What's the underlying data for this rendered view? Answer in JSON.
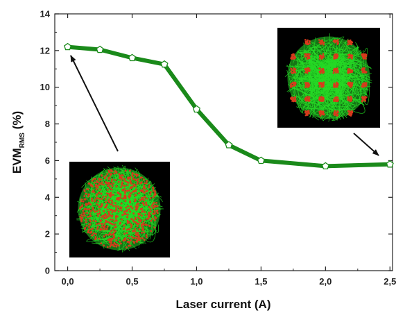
{
  "chart_data": {
    "type": "line",
    "title": "",
    "xlabel": "Laser current (A)",
    "ylabel_main": "EVM",
    "ylabel_sub": "RMS",
    "ylabel_unit": " (%)",
    "xlim": [
      -0.1,
      2.52
    ],
    "ylim": [
      0,
      14
    ],
    "x_ticks": [
      "0,0",
      "0,5",
      "1,0",
      "1,5",
      "2,0",
      "2,5"
    ],
    "x_tick_values": [
      0,
      0.5,
      1.0,
      1.5,
      2.0,
      2.5
    ],
    "y_ticks": [
      "0",
      "2",
      "4",
      "6",
      "8",
      "10",
      "12",
      "14"
    ],
    "y_tick_values": [
      0,
      2,
      4,
      6,
      8,
      10,
      12,
      14
    ],
    "grid": false,
    "series": [
      {
        "x": [
          0,
          0.25,
          0.5,
          0.75,
          1.0,
          1.25,
          1.5,
          2.0,
          2.5
        ],
        "y": [
          12.2,
          12.05,
          11.6,
          11.25,
          8.8,
          6.85,
          6.0,
          5.7,
          5.8
        ]
      }
    ],
    "colors": {
      "line": "#1a8a1a",
      "marker_fill": "#ffffff",
      "marker_stroke": "#1a8a1a"
    },
    "insets": [
      {
        "name": "constellation-inset-low-current",
        "pattern": "random",
        "near_x": 0.0
      },
      {
        "name": "constellation-inset-high-current",
        "pattern": "grid",
        "near_x": 2.5
      }
    ]
  }
}
